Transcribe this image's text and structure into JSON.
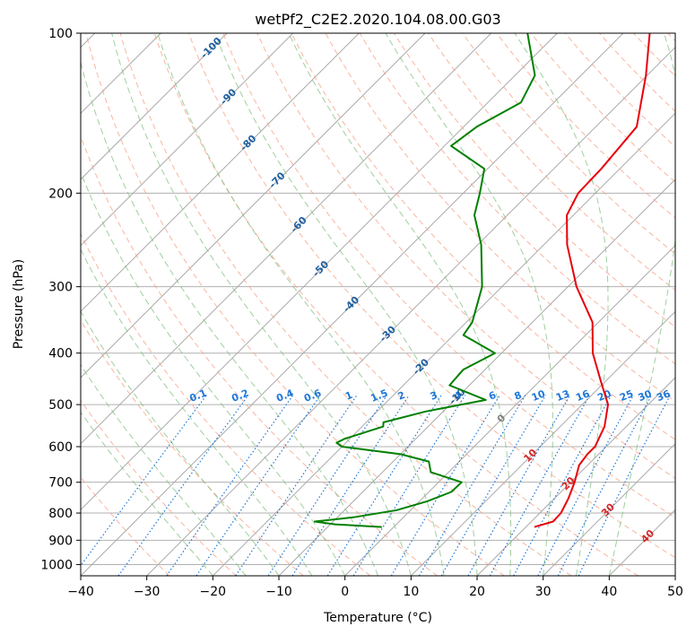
{
  "chart_data": {
    "type": "line",
    "title": "wetPf2_C2E2.2020.104.08.00.G03",
    "xlabel": "Temperature (°C)",
    "ylabel": "Pressure (hPa)",
    "xlim": [
      -40,
      50
    ],
    "ylim": [
      1050,
      100
    ],
    "y_scale": "log",
    "grid": true,
    "x_ticks": [
      -40,
      -30,
      -20,
      -10,
      0,
      10,
      20,
      30,
      40,
      50
    ],
    "y_ticks": [
      100,
      200,
      300,
      400,
      500,
      600,
      700,
      800,
      900,
      1000
    ],
    "colors": {
      "temperature": "#e8000b",
      "dewpoint": "#008000",
      "isotherm": "#999999",
      "dry_adiabat": "#f7a38a",
      "moist_adiabat": "#7fbf7f",
      "mixing_ratio": "#1f77d8",
      "isotherm_label": "#1f5f9f",
      "temp_label": "#d62728",
      "zero_label": "#808080"
    },
    "series": [
      {
        "key": "temperature",
        "pressure": [
          850,
          830,
          800,
          750,
          700,
          650,
          620,
          600,
          550,
          500,
          450,
          400,
          350,
          300,
          250,
          220,
          200,
          180,
          150,
          120,
          100
        ],
        "temperature": [
          21.3,
          23.3,
          23.2,
          22.1,
          20.6,
          18.7,
          18.3,
          18.3,
          16.7,
          13.9,
          9.1,
          3.8,
          -0.9,
          -8.7,
          -16.5,
          -21.0,
          -22.6,
          -22.8,
          -23.8,
          -30.2,
          -36.0
        ]
      },
      {
        "key": "dewpoint",
        "pressure": [
          850,
          840,
          830,
          815,
          790,
          760,
          730,
          700,
          670,
          640,
          620,
          600,
          590,
          580,
          550,
          540,
          515,
          490,
          460,
          430,
          400,
          370,
          350,
          300,
          250,
          220,
          200,
          180,
          163,
          150,
          135,
          120,
          100
        ],
        "temperature": [
          -1.8,
          -9.3,
          -12.8,
          -7.6,
          -2.1,
          1.2,
          3.4,
          3.5,
          -2.7,
          -4.6,
          -10.0,
          -20.0,
          -21.4,
          -20.8,
          -16.8,
          -17.4,
          -12.6,
          -5.3,
          -13.0,
          -13.3,
          -11.0,
          -18.5,
          -19.1,
          -23.0,
          -29.5,
          -35.0,
          -37.5,
          -40.5,
          -49.0,
          -48.0,
          -45.0,
          -47.0,
          -54.5
        ]
      }
    ],
    "isotherm_labels": [
      "-100",
      "-90",
      "-80",
      "-70",
      "-60",
      "-50",
      "-40",
      "-30",
      "-20",
      "-10",
      "0",
      "10",
      "20",
      "30",
      "40"
    ],
    "mixing_ratio_labels": [
      "0.1",
      "0.2",
      "0.4",
      "0.6",
      "1",
      "1.5",
      "2",
      "3",
      "4",
      "6",
      "8",
      "10",
      "13",
      "16",
      "20",
      "25",
      "30",
      "36"
    ]
  }
}
